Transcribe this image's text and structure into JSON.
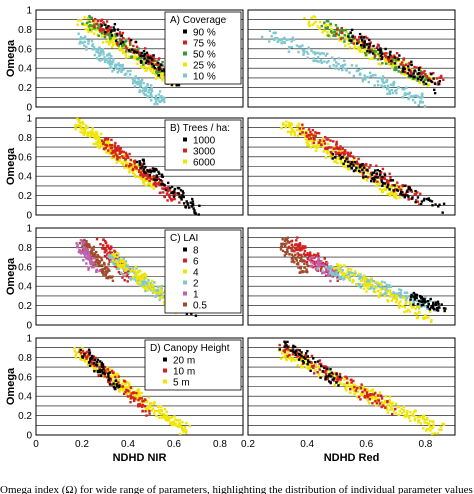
{
  "chart_data": {
    "type": "scatter",
    "x_axis": {
      "label_left": "NDHD NIR",
      "label_right": "NDHD Red",
      "left_ticks": [
        "0",
        "0.2",
        "0.4",
        "0.6",
        "0.8"
      ],
      "right_ticks": [
        "0.2",
        "0.4",
        "0.6",
        "0.8"
      ],
      "left_range": [
        0,
        0.9
      ],
      "right_range": [
        0.2,
        0.9
      ]
    },
    "y_axis": {
      "label": "Omega",
      "ticks": [
        "0",
        "0.2",
        "0.4",
        "0.6",
        "0.8",
        "1"
      ],
      "range": [
        0,
        1
      ]
    },
    "grid": true,
    "panels": [
      {
        "id": "coverage",
        "legend_title": "A) Coverage",
        "legend_position": "top-right of left plot",
        "series": [
          {
            "name": "90 %",
            "color": "#000000"
          },
          {
            "name": "75 %",
            "color": "#d42020"
          },
          {
            "name": "50 %",
            "color": "#3a9a3a"
          },
          {
            "name": "25 %",
            "color": "#f0e600"
          },
          {
            "name": "10 %",
            "color": "#7fc8d0"
          }
        ],
        "clusters_left": [
          {
            "series": 4,
            "x": [
              0.2,
              0.55
            ],
            "y": [
              0.05,
              0.7
            ],
            "n": 180
          },
          {
            "series": 3,
            "x": [
              0.2,
              0.6
            ],
            "y": [
              0.25,
              0.9
            ],
            "n": 200
          },
          {
            "series": 2,
            "x": [
              0.22,
              0.6
            ],
            "y": [
              0.3,
              0.9
            ],
            "n": 120
          },
          {
            "series": 1,
            "x": [
              0.25,
              0.62
            ],
            "y": [
              0.3,
              0.9
            ],
            "n": 100
          },
          {
            "series": 0,
            "x": [
              0.3,
              0.64
            ],
            "y": [
              0.2,
              0.85
            ],
            "n": 80
          }
        ],
        "clusters_right": [
          {
            "series": 4,
            "x": [
              0.26,
              0.8
            ],
            "y": [
              0.05,
              0.75
            ],
            "n": 180
          },
          {
            "series": 3,
            "x": [
              0.4,
              0.82
            ],
            "y": [
              0.25,
              0.9
            ],
            "n": 180
          },
          {
            "series": 2,
            "x": [
              0.45,
              0.82
            ],
            "y": [
              0.25,
              0.85
            ],
            "n": 110
          },
          {
            "series": 1,
            "x": [
              0.5,
              0.85
            ],
            "y": [
              0.25,
              0.8
            ],
            "n": 90
          },
          {
            "series": 0,
            "x": [
              0.55,
              0.85
            ],
            "y": [
              0.2,
              0.75
            ],
            "n": 80
          }
        ]
      },
      {
        "id": "trees",
        "legend_title": "B) Trees / ha:",
        "legend_position": "top-right of left plot",
        "series": [
          {
            "name": "1000",
            "color": "#000000"
          },
          {
            "name": "3000",
            "color": "#d42020"
          },
          {
            "name": "6000",
            "color": "#f0e600"
          }
        ],
        "clusters_left": [
          {
            "series": 2,
            "x": [
              0.18,
              0.52
            ],
            "y": [
              0.3,
              0.95
            ],
            "n": 240
          },
          {
            "series": 1,
            "x": [
              0.3,
              0.62
            ],
            "y": [
              0.15,
              0.75
            ],
            "n": 160
          },
          {
            "series": 0,
            "x": [
              0.45,
              0.7
            ],
            "y": [
              0.05,
              0.55
            ],
            "n": 90
          }
        ],
        "clusters_right": [
          {
            "series": 2,
            "x": [
              0.32,
              0.72
            ],
            "y": [
              0.2,
              0.95
            ],
            "n": 240
          },
          {
            "series": 1,
            "x": [
              0.38,
              0.78
            ],
            "y": [
              0.15,
              0.9
            ],
            "n": 160
          },
          {
            "series": 0,
            "x": [
              0.5,
              0.86
            ],
            "y": [
              0.05,
              0.6
            ],
            "n": 100
          }
        ]
      },
      {
        "id": "lai",
        "legend_title": "C) LAI",
        "legend_position": "top-right of left plot",
        "series": [
          {
            "name": "8",
            "color": "#000000"
          },
          {
            "name": "6",
            "color": "#d42020"
          },
          {
            "name": "4",
            "color": "#f0e600"
          },
          {
            "name": "2",
            "color": "#7fc8d0"
          },
          {
            "name": "1",
            "color": "#c060b0"
          },
          {
            "name": "0.5",
            "color": "#a04a2a"
          }
        ],
        "clusters_left": [
          {
            "series": 5,
            "x": [
              0.2,
              0.32
            ],
            "y": [
              0.5,
              0.85
            ],
            "n": 120
          },
          {
            "series": 4,
            "x": [
              0.18,
              0.26
            ],
            "y": [
              0.55,
              0.85
            ],
            "n": 60
          },
          {
            "series": 1,
            "x": [
              0.28,
              0.4
            ],
            "y": [
              0.5,
              0.85
            ],
            "n": 90
          },
          {
            "series": 3,
            "x": [
              0.32,
              0.62
            ],
            "y": [
              0.2,
              0.7
            ],
            "n": 180
          },
          {
            "series": 2,
            "x": [
              0.35,
              0.62
            ],
            "y": [
              0.15,
              0.7
            ],
            "n": 120
          },
          {
            "series": 0,
            "x": [
              0.58,
              0.68
            ],
            "y": [
              0.15,
              0.3
            ],
            "n": 50
          }
        ],
        "clusters_right": [
          {
            "series": 5,
            "x": [
              0.32,
              0.4
            ],
            "y": [
              0.55,
              0.85
            ],
            "n": 80
          },
          {
            "series": 1,
            "x": [
              0.35,
              0.5
            ],
            "y": [
              0.5,
              0.85
            ],
            "n": 100
          },
          {
            "series": 4,
            "x": [
              0.42,
              0.5
            ],
            "y": [
              0.5,
              0.65
            ],
            "n": 50
          },
          {
            "series": 3,
            "x": [
              0.45,
              0.82
            ],
            "y": [
              0.2,
              0.6
            ],
            "n": 180
          },
          {
            "series": 2,
            "x": [
              0.5,
              0.82
            ],
            "y": [
              0.05,
              0.6
            ],
            "n": 130
          },
          {
            "series": 0,
            "x": [
              0.75,
              0.86
            ],
            "y": [
              0.15,
              0.3
            ],
            "n": 60
          }
        ]
      },
      {
        "id": "height",
        "legend_title": "D) Canopy Height",
        "legend_position": "top-right of left plot",
        "series": [
          {
            "name": "20 m",
            "color": "#000000"
          },
          {
            "name": "10 m",
            "color": "#d42020"
          },
          {
            "name": "5 m",
            "color": "#f0e600"
          }
        ],
        "clusters_left": [
          {
            "series": 2,
            "x": [
              0.18,
              0.65
            ],
            "y": [
              0.05,
              0.85
            ],
            "n": 260
          },
          {
            "series": 1,
            "x": [
              0.2,
              0.5
            ],
            "y": [
              0.25,
              0.85
            ],
            "n": 110
          },
          {
            "series": 0,
            "x": [
              0.2,
              0.35
            ],
            "y": [
              0.5,
              0.9
            ],
            "n": 60
          }
        ],
        "clusters_right": [
          {
            "series": 2,
            "x": [
              0.32,
              0.85
            ],
            "y": [
              0.05,
              0.85
            ],
            "n": 260
          },
          {
            "series": 1,
            "x": [
              0.32,
              0.7
            ],
            "y": [
              0.25,
              0.9
            ],
            "n": 110
          },
          {
            "series": 0,
            "x": [
              0.32,
              0.5
            ],
            "y": [
              0.55,
              0.95
            ],
            "n": 60
          }
        ]
      }
    ]
  },
  "caption": "Omega index (Ω) for wide range of parameters, highlighting the distribution of individual parameter values"
}
